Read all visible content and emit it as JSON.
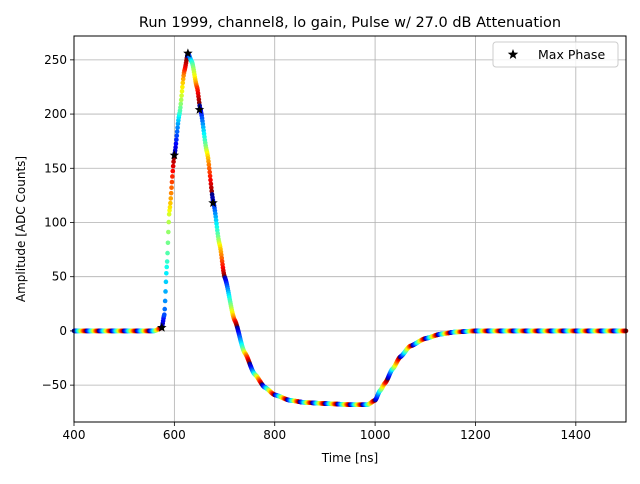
{
  "chart_data": {
    "type": "scatter",
    "title": "Run 1999, channel8, lo gain, Pulse w/ 27.0 dB Attenuation",
    "xlabel": "Time [ns]",
    "ylabel": "Amplitude [ADC Counts]",
    "xlim": [
      400,
      1500
    ],
    "ylim": [
      -84,
      272
    ],
    "xticks": [
      400,
      600,
      800,
      1000,
      1200,
      1400
    ],
    "yticks": [
      -50,
      0,
      50,
      100,
      150,
      200,
      250
    ],
    "grid": true,
    "legend": {
      "placement": "top-right",
      "entries": [
        "Max Phase"
      ]
    },
    "colormap": "jet",
    "waveform_keypoints": {
      "x": [
        400,
        560,
        575,
        580,
        585,
        590,
        600,
        610,
        620,
        627,
        635,
        645,
        652,
        665,
        678,
        690,
        700,
        720,
        740,
        760,
        780,
        800,
        830,
        860,
        900,
        950,
        985,
        1000,
        1010,
        1020,
        1035,
        1050,
        1070,
        1100,
        1130,
        1160,
        1200,
        1250,
        1300,
        1400,
        1500
      ],
      "y": [
        0,
        0,
        3,
        15,
        60,
        110,
        162,
        200,
        240,
        256,
        248,
        225,
        204,
        165,
        118,
        80,
        50,
        10,
        -20,
        -40,
        -52,
        -59,
        -64,
        -66,
        -67,
        -68,
        -68,
        -64,
        -55,
        -48,
        -35,
        -24,
        -14,
        -7,
        -3,
        -1,
        0,
        0,
        0,
        0,
        0
      ]
    },
    "max_phase_points": {
      "name": "Max Phase",
      "x": [
        575,
        600,
        627,
        650,
        677
      ],
      "y": [
        3,
        162,
        256,
        204,
        118
      ]
    }
  }
}
